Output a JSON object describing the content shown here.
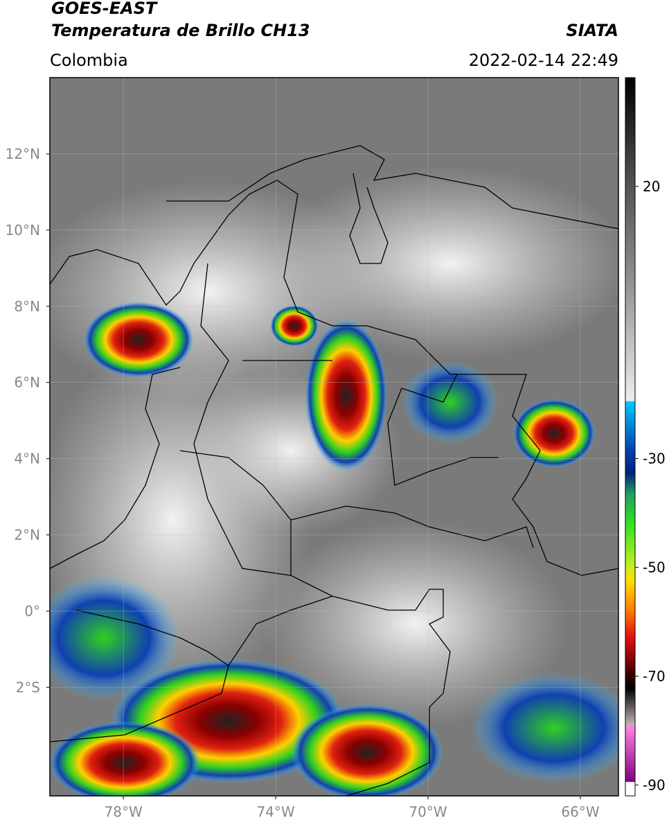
{
  "header": {
    "title": "GOES-EAST",
    "product": "Temperatura de Brillo CH13",
    "region": "Colombia",
    "source": "SIATA",
    "datetime": "2022-02-14 22:49"
  },
  "map": {
    "lon_range": [
      -79.93,
      -65
    ],
    "lat_range": [
      -4.85,
      14
    ],
    "lat_ticks": [
      {
        "value": 12,
        "label": "12°N"
      },
      {
        "value": 10,
        "label": "10°N"
      },
      {
        "value": 8,
        "label": "8°N"
      },
      {
        "value": 6,
        "label": "6°N"
      },
      {
        "value": 4,
        "label": "4°N"
      },
      {
        "value": 2,
        "label": "2°N"
      },
      {
        "value": 0,
        "label": "0°"
      },
      {
        "value": -2,
        "label": "2°S"
      }
    ],
    "lon_ticks": [
      {
        "value": -78,
        "label": "78°W"
      },
      {
        "value": -74,
        "label": "74°W"
      },
      {
        "value": -70,
        "label": "70°W"
      },
      {
        "value": -66,
        "label": "66°W"
      }
    ],
    "grid": true
  },
  "colorbar": {
    "range": [
      -92,
      40
    ],
    "ticks": [
      20,
      -30,
      -50,
      -70,
      -90
    ]
  }
}
